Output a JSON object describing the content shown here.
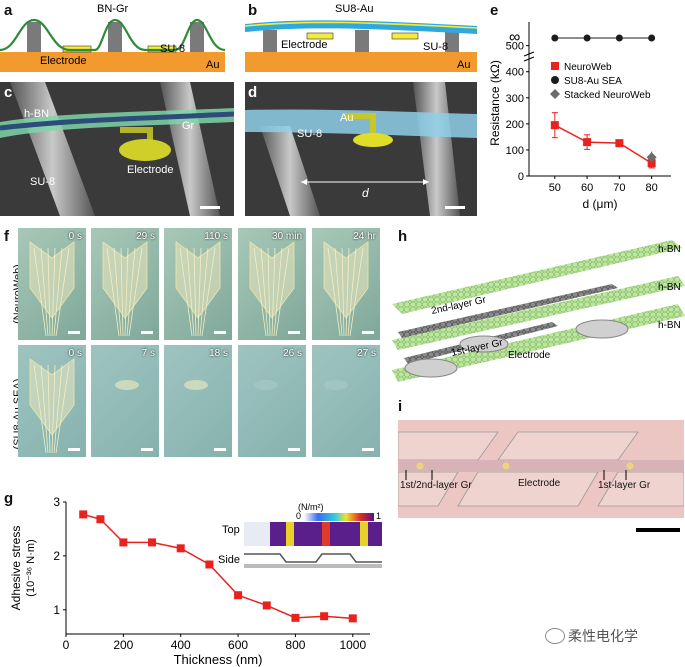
{
  "panels": {
    "a": {
      "letter": "a",
      "top_label": "BN-Gr",
      "electrode": "Electrode",
      "su8": "SU-8",
      "au": "Au"
    },
    "b": {
      "letter": "b",
      "top_label": "SU8-Au",
      "electrode": "Electrode",
      "su8": "SU-8",
      "au": "Au"
    },
    "c": {
      "letter": "c",
      "hbn": "h-BN",
      "gr": "Gr",
      "electrode": "Electrode",
      "su8": "SU-8"
    },
    "d": {
      "letter": "d",
      "au": "Au",
      "su8": "SU-8",
      "d_label": "d"
    },
    "e": {
      "letter": "e",
      "infinity": "∞",
      "ylabel": "Resistance (kΩ)",
      "xlabel": "d (μm)"
    },
    "f": {
      "letter": "f",
      "row1_label": "(NeuroWeb)",
      "row2_label": "(SU8-Au SEA)",
      "row1_times": [
        "0 s",
        "29 s",
        "110 s",
        "30 min",
        "24 hr"
      ],
      "row2_times": [
        "0 s",
        "7 s",
        "18 s",
        "26 s",
        "27 s"
      ]
    },
    "g": {
      "letter": "g",
      "ylabel_line1": "Adhesive stress",
      "ylabel_line2": "(10⁻³⁶ N·m)",
      "xlabel": "Thickness (nm)",
      "inset_unit": "(N/m²)",
      "inset_min": "0",
      "inset_max": "1",
      "inset_top": "Top",
      "inset_side": "Side"
    },
    "h": {
      "letter": "h",
      "hbn1": "h-BN",
      "hbn2": "h-BN",
      "hbn3": "h-BN",
      "gr2": "2nd-layer Gr",
      "gr1": "1st-layer Gr",
      "electrode": "Electrode"
    },
    "i": {
      "letter": "i",
      "lbl1": "1st/2nd-layer Gr",
      "lbl2": "Electrode",
      "lbl3": "1st-layer Gr"
    },
    "watermark": "柔性电化学"
  },
  "chart_data": [
    {
      "type": "scatter",
      "panel": "e",
      "xlabel": "d (μm)",
      "ylabel": "Resistance (kΩ)",
      "x_ticks": [
        50,
        60,
        70,
        80
      ],
      "y_ticks": [
        0,
        100,
        200,
        300,
        400,
        500
      ],
      "xlim": [
        42,
        86
      ],
      "ylim": [
        0,
        560
      ],
      "legend_position": "right",
      "series": [
        {
          "name": "NeuroWeb",
          "color": "#e8231f",
          "marker": "square",
          "x": [
            50,
            60,
            70,
            80
          ],
          "y": [
            195,
            130,
            126,
            49
          ],
          "err": [
            48,
            28,
            12,
            18
          ]
        },
        {
          "name": "SU8-Au SEA",
          "color": "#1c1c1c",
          "marker": "circle",
          "x": [
            50,
            60,
            70,
            80
          ],
          "y": [
            "∞",
            "∞",
            "∞",
            "∞"
          ]
        },
        {
          "name": "Stacked NeuroWeb",
          "color": "#6b6b6b",
          "marker": "diamond",
          "x": [
            80
          ],
          "y": [
            72
          ],
          "err": [
            22
          ]
        }
      ]
    },
    {
      "type": "line",
      "panel": "g",
      "xlabel": "Thickness (nm)",
      "ylabel": "Adhesive stress (10⁻³⁶ N·m)",
      "x_ticks": [
        0,
        200,
        400,
        600,
        800,
        1000
      ],
      "y_ticks": [
        1,
        2,
        3
      ],
      "xlim": [
        0,
        1060
      ],
      "ylim": [
        0.55,
        3.0
      ],
      "series": [
        {
          "color": "#e8231f",
          "x": [
            60,
            120,
            200,
            300,
            400,
            500,
            600,
            700,
            800,
            900,
            1000
          ],
          "y": [
            2.77,
            2.68,
            2.25,
            2.25,
            2.14,
            1.84,
            1.27,
            1.08,
            0.85,
            0.88,
            0.84
          ]
        }
      ]
    }
  ]
}
